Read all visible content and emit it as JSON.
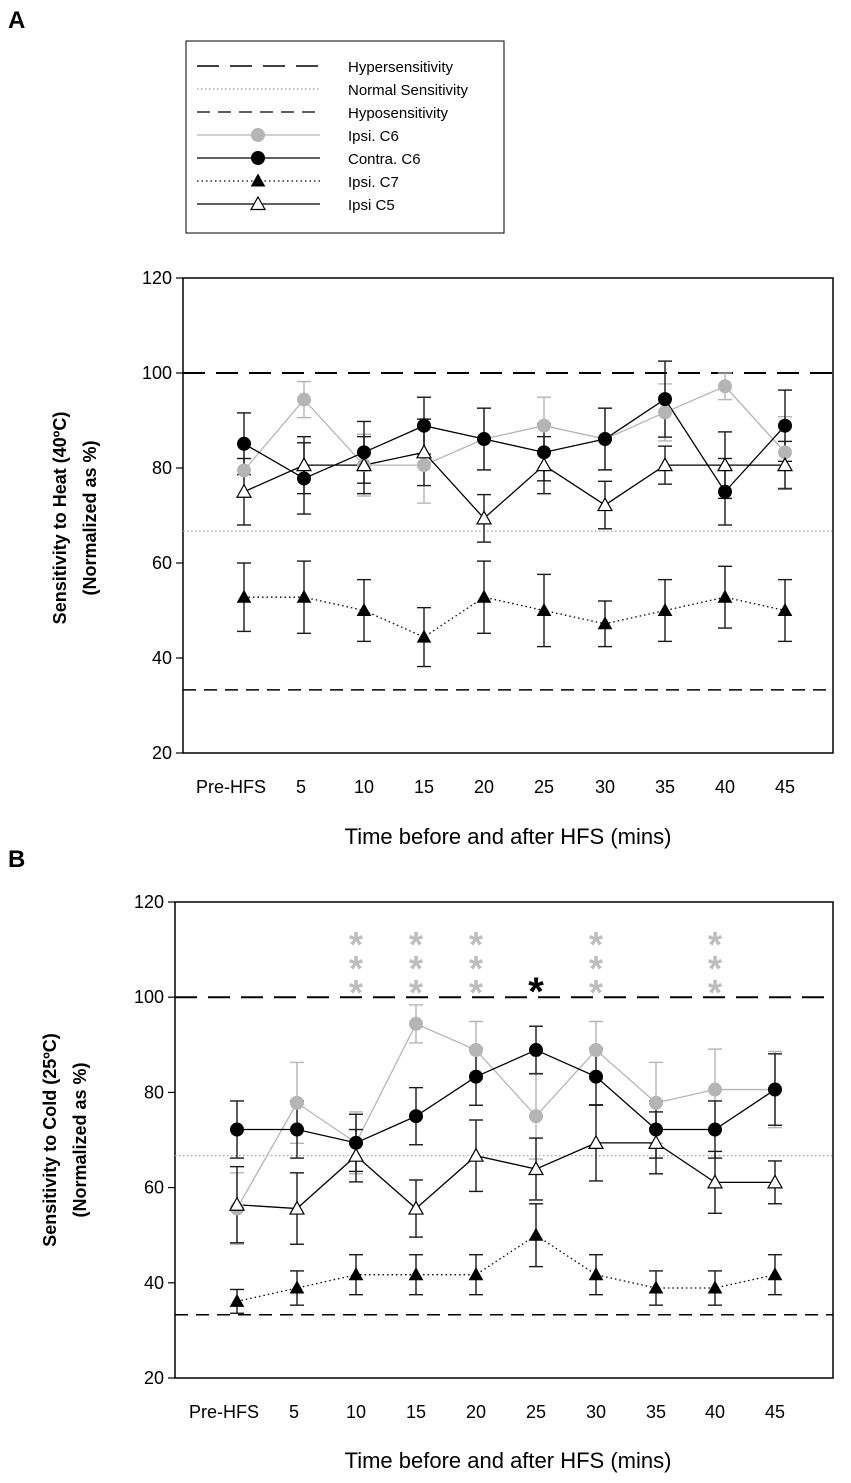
{
  "legend": {
    "entries": [
      {
        "label": "Hypersensitivity",
        "style": "long-dash"
      },
      {
        "label": "Normal Sensitivity",
        "style": "dotted-gray"
      },
      {
        "label": "Hyposensitivity",
        "style": "short-dash"
      },
      {
        "label": "Ipsi. C6",
        "style": "series-0"
      },
      {
        "label": "Contra. C6",
        "style": "series-1"
      },
      {
        "label": "Ipsi. C7",
        "style": "series-2"
      },
      {
        "label": "Ipsi C5",
        "style": "series-3"
      }
    ]
  },
  "chart_data": [
    {
      "panel": "A",
      "type": "line",
      "title": "",
      "xlabel": "Time before and after HFS (mins)",
      "ylabel_line1": "Sensitivity to Heat (40ºC)",
      "ylabel_line2": "(Normalized as %)",
      "ylim": [
        20,
        120
      ],
      "yticks": [
        "20",
        "40",
        "60",
        "80",
        "100",
        "120"
      ],
      "categories": [
        "Pre-HFS",
        "5",
        "10",
        "15",
        "20",
        "25",
        "30",
        "35",
        "40",
        "45"
      ],
      "reference_lines": [
        {
          "name": "Hypersensitivity",
          "value": 100
        },
        {
          "name": "Normal Sensitivity",
          "value": 66.7
        },
        {
          "name": "Hyposensitivity",
          "value": 33.3
        }
      ],
      "series": [
        {
          "name": "Ipsi. C6",
          "color": "#b5b5b5",
          "marker": "circle-filled",
          "line": "solid",
          "values": [
            79.5,
            94.4,
            80.6,
            80.6,
            86.1,
            88.9,
            86.1,
            91.7,
            97.2,
            83.3
          ],
          "errors": [
            5.5,
            3.8,
            6.5,
            8.0,
            6.5,
            6.0,
            6.5,
            6.0,
            2.8,
            7.5
          ]
        },
        {
          "name": "Contra. C6",
          "color": "#000000",
          "marker": "circle-filled",
          "line": "solid",
          "values": [
            85.1,
            77.8,
            83.3,
            88.9,
            86.1,
            83.3,
            86.1,
            94.5,
            75.0,
            88.9
          ],
          "errors": [
            6.5,
            7.5,
            6.5,
            6.0,
            6.5,
            6.0,
            6.5,
            8.0,
            7.0,
            7.5
          ]
        },
        {
          "name": "Ipsi. C7",
          "color": "#000000",
          "marker": "triangle-filled",
          "line": "dotted",
          "values": [
            52.8,
            52.8,
            50.0,
            44.4,
            52.8,
            50.0,
            47.2,
            50.0,
            52.8,
            50.0
          ],
          "errors": [
            7.2,
            7.6,
            6.5,
            6.2,
            7.6,
            7.6,
            4.8,
            6.5,
            6.5,
            6.5
          ]
        },
        {
          "name": "Ipsi C5",
          "color": "#000000",
          "marker": "triangle-open",
          "line": "solid",
          "values": [
            75.0,
            80.6,
            80.6,
            83.3,
            69.4,
            80.6,
            72.2,
            80.6,
            80.6,
            80.6
          ],
          "errors": [
            7.0,
            6.0,
            6.0,
            7.0,
            5.0,
            6.0,
            5.0,
            4.0,
            7.0,
            5.0
          ]
        }
      ],
      "significance": []
    },
    {
      "panel": "B",
      "type": "line",
      "title": "",
      "xlabel": "Time before and after HFS (mins)",
      "ylabel_line1": "Sensitivity to Cold (25ºC)",
      "ylabel_line2": "(Normalized as %)",
      "ylim": [
        20,
        120
      ],
      "yticks": [
        "20",
        "40",
        "60",
        "80",
        "100",
        "120"
      ],
      "categories": [
        "Pre-HFS",
        "5",
        "10",
        "15",
        "20",
        "25",
        "30",
        "35",
        "40",
        "45"
      ],
      "reference_lines": [
        {
          "name": "Hypersensitivity",
          "value": 100
        },
        {
          "name": "Normal Sensitivity",
          "value": 66.7
        },
        {
          "name": "Hyposensitivity",
          "value": 33.3
        }
      ],
      "series": [
        {
          "name": "Ipsi. C6",
          "color": "#b5b5b5",
          "marker": "circle-filled",
          "line": "solid",
          "values": [
            55.6,
            77.8,
            69.4,
            94.4,
            88.9,
            75.0,
            88.9,
            77.8,
            80.6,
            80.6
          ],
          "errors": [
            7.5,
            8.5,
            6.5,
            4.0,
            6.0,
            9.0,
            6.0,
            8.5,
            8.5,
            8.0
          ]
        },
        {
          "name": "Contra. C6",
          "color": "#000000",
          "marker": "circle-filled",
          "line": "solid",
          "values": [
            72.2,
            72.2,
            69.4,
            75.0,
            83.3,
            88.9,
            83.3,
            72.2,
            72.2,
            80.6
          ],
          "errors": [
            6.0,
            6.0,
            6.0,
            6.0,
            6.0,
            5.0,
            6.0,
            6.0,
            6.0,
            7.5
          ]
        },
        {
          "name": "Ipsi. C7",
          "color": "#000000",
          "marker": "triangle-filled",
          "line": "dotted",
          "values": [
            36.1,
            38.9,
            41.7,
            41.7,
            41.7,
            50.0,
            41.7,
            38.9,
            38.9,
            41.7
          ],
          "errors": [
            2.5,
            3.6,
            4.2,
            4.2,
            4.2,
            6.6,
            4.2,
            3.6,
            3.6,
            4.2
          ]
        },
        {
          "name": "Ipsi C5",
          "color": "#000000",
          "marker": "triangle-open",
          "line": "solid",
          "values": [
            56.4,
            55.6,
            66.7,
            55.6,
            66.7,
            63.9,
            69.4,
            69.4,
            61.1,
            61.1
          ],
          "errors": [
            8.0,
            7.5,
            5.5,
            6.0,
            7.5,
            6.5,
            8.0,
            6.5,
            6.5,
            4.5
          ]
        }
      ],
      "significance": [
        {
          "category": "10",
          "mark": "***",
          "color": "#bdbdbd"
        },
        {
          "category": "15",
          "mark": "***",
          "color": "#bdbdbd"
        },
        {
          "category": "20",
          "mark": "***",
          "color": "#bdbdbd"
        },
        {
          "category": "25",
          "mark": "*",
          "color": "#000000"
        },
        {
          "category": "30",
          "mark": "***",
          "color": "#bdbdbd"
        },
        {
          "category": "40",
          "mark": "***",
          "color": "#bdbdbd"
        }
      ]
    }
  ]
}
